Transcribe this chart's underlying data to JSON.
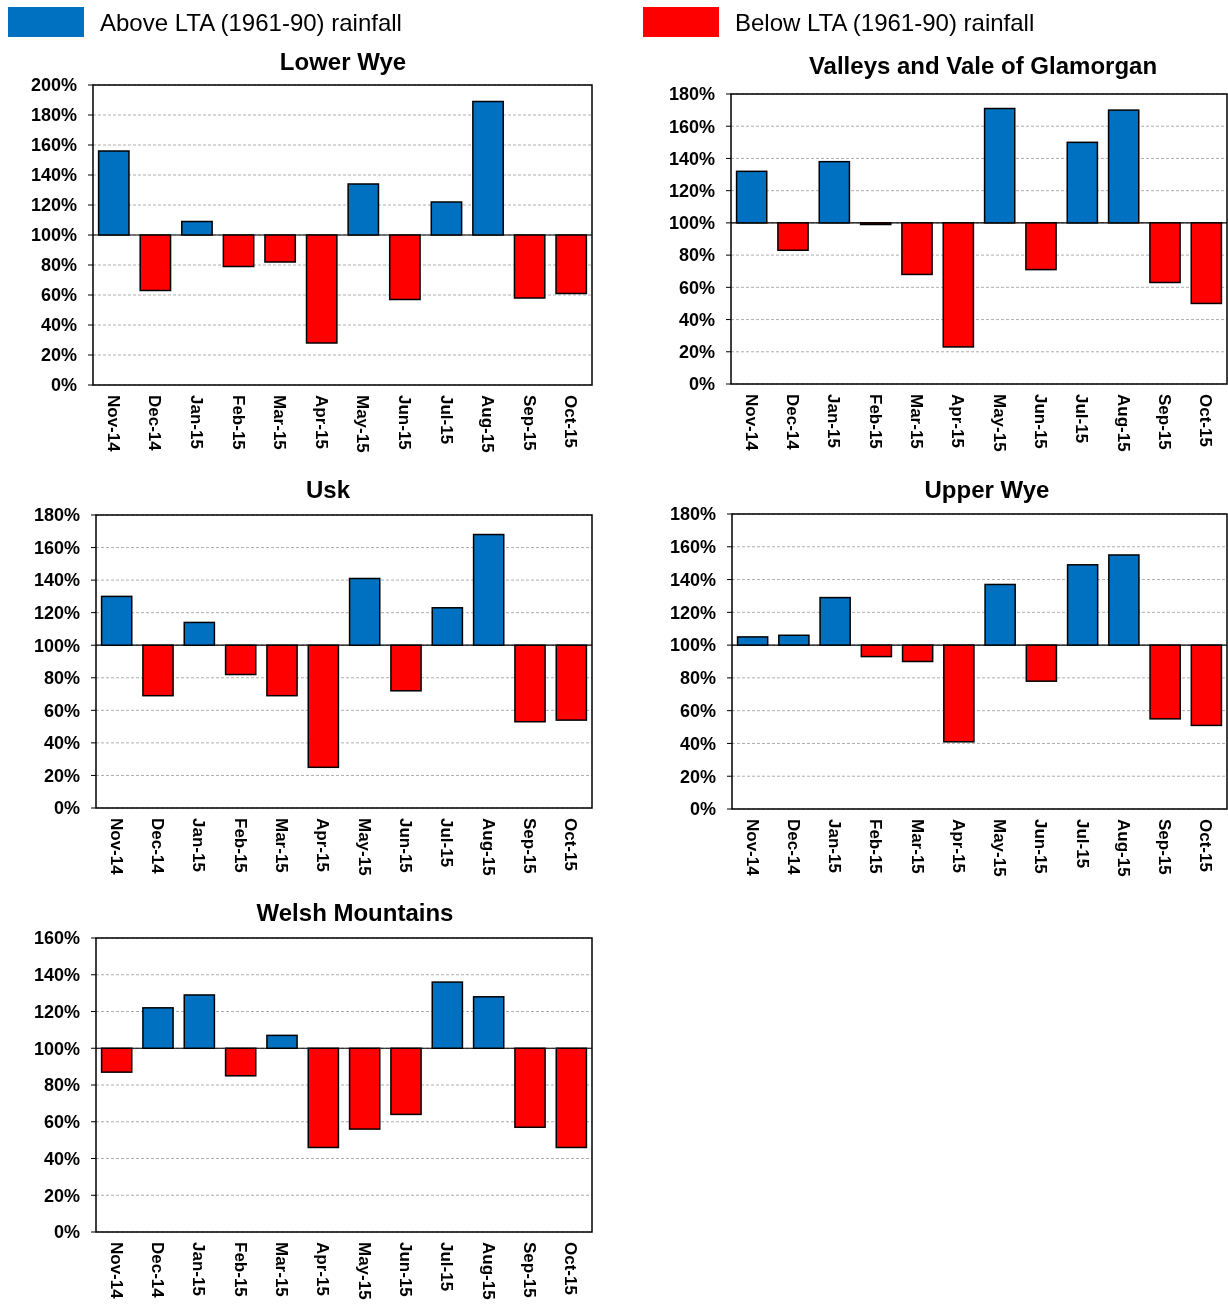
{
  "chart_data": [
    {
      "type": "bar",
      "title": "Lower Wye",
      "categories": [
        "Nov-14",
        "Dec-14",
        "Jan-15",
        "Feb-15",
        "Mar-15",
        "Apr-15",
        "May-15",
        "Jun-15",
        "Jul-15",
        "Aug-15",
        "Sep-15",
        "Oct-15"
      ],
      "ref_lines": [
        {
          "axis": "y",
          "value": 100,
          "color": "#000000"
        }
      ],
      "series": [
        {
          "name": "Above LTA (1961-90) rainfall",
          "color": "#0070c0",
          "base": [
            100,
            null,
            100,
            null,
            null,
            null,
            100,
            null,
            100,
            100,
            null,
            null
          ],
          "values": [
            56,
            null,
            9,
            null,
            null,
            null,
            34,
            null,
            22,
            89,
            null,
            null
          ]
        },
        {
          "name": "Below LTA (1961-90) rainfall",
          "color": "#ff0000",
          "base": [
            null,
            100,
            null,
            100,
            100,
            100,
            null,
            100,
            null,
            null,
            100,
            100
          ],
          "values": [
            null,
            -37,
            null,
            -21,
            -18,
            -72,
            null,
            -43,
            null,
            null,
            -42,
            -39
          ]
        }
      ],
      "ylim": [
        0,
        200
      ],
      "yticks": [
        {
          "value": 0,
          "label": "0%"
        },
        {
          "value": 20,
          "label": "20%"
        },
        {
          "value": 40,
          "label": "40%"
        },
        {
          "value": 60,
          "label": "60%"
        },
        {
          "value": 80,
          "label": "80%"
        },
        {
          "value": 100,
          "label": "100%"
        },
        {
          "value": 120,
          "label": "120%"
        },
        {
          "value": 140,
          "label": "140%"
        },
        {
          "value": 160,
          "label": "160%"
        },
        {
          "value": 180,
          "label": "180%"
        },
        {
          "value": 200,
          "label": "200%"
        }
      ],
      "grid": "y",
      "legend": "top"
    },
    {
      "type": "bar",
      "title": "Valleys and Vale of Glamorgan",
      "categories": [
        "Nov-14",
        "Dec-14",
        "Jan-15",
        "Feb-15",
        "Mar-15",
        "Apr-15",
        "May-15",
        "Jun-15",
        "Jul-15",
        "Aug-15",
        "Sep-15",
        "Oct-15"
      ],
      "ref_lines": [
        {
          "axis": "y",
          "value": 100,
          "color": "#000000"
        }
      ],
      "series": [
        {
          "color": "#0070c0",
          "base": [
            100,
            null,
            100,
            null,
            null,
            null,
            100,
            null,
            100,
            100,
            null,
            null
          ],
          "values": [
            32,
            null,
            38,
            null,
            null,
            null,
            71,
            null,
            50,
            70,
            null,
            null
          ]
        },
        {
          "color": "#ff0000",
          "base": [
            null,
            100,
            null,
            100,
            100,
            100,
            null,
            100,
            null,
            null,
            100,
            100
          ],
          "values": [
            null,
            -17,
            null,
            -1,
            -32,
            -77,
            null,
            -29,
            null,
            null,
            -37,
            -50
          ]
        }
      ],
      "ylim": [
        0,
        180
      ],
      "yticks": [
        {
          "value": 0,
          "label": "0%"
        },
        {
          "value": 20,
          "label": "20%"
        },
        {
          "value": 40,
          "label": "40%"
        },
        {
          "value": 60,
          "label": "60%"
        },
        {
          "value": 80,
          "label": "80%"
        },
        {
          "value": 100,
          "label": "100%"
        },
        {
          "value": 120,
          "label": "120%"
        },
        {
          "value": 140,
          "label": "140%"
        },
        {
          "value": 160,
          "label": "160%"
        },
        {
          "value": 180,
          "label": "180%"
        }
      ],
      "grid": "y"
    },
    {
      "type": "bar",
      "title": "Usk",
      "categories": [
        "Nov-14",
        "Dec-14",
        "Jan-15",
        "Feb-15",
        "Mar-15",
        "Apr-15",
        "May-15",
        "Jun-15",
        "Jul-15",
        "Aug-15",
        "Sep-15",
        "Oct-15"
      ],
      "ref_lines": [
        {
          "axis": "y",
          "value": 100,
          "color": "#000000"
        }
      ],
      "series": [
        {
          "color": "#0070c0",
          "base": [
            100,
            null,
            100,
            null,
            null,
            null,
            100,
            null,
            100,
            100,
            null,
            null
          ],
          "values": [
            30,
            null,
            14,
            null,
            null,
            null,
            41,
            null,
            23,
            68,
            null,
            null
          ]
        },
        {
          "color": "#ff0000",
          "base": [
            null,
            100,
            null,
            100,
            100,
            100,
            null,
            100,
            null,
            null,
            100,
            100
          ],
          "values": [
            null,
            -31,
            null,
            -18,
            -31,
            -75,
            null,
            -28,
            null,
            null,
            -47,
            -46
          ]
        }
      ],
      "ylim": [
        0,
        180
      ],
      "yticks": [
        {
          "value": 0,
          "label": "0%"
        },
        {
          "value": 20,
          "label": "20%"
        },
        {
          "value": 40,
          "label": "40%"
        },
        {
          "value": 60,
          "label": "60%"
        },
        {
          "value": 80,
          "label": "80%"
        },
        {
          "value": 100,
          "label": "100%"
        },
        {
          "value": 120,
          "label": "120%"
        },
        {
          "value": 140,
          "label": "140%"
        },
        {
          "value": 160,
          "label": "160%"
        },
        {
          "value": 180,
          "label": "180%"
        }
      ],
      "grid": "y"
    },
    {
      "type": "bar",
      "title": "Upper Wye",
      "categories": [
        "Nov-14",
        "Dec-14",
        "Jan-15",
        "Feb-15",
        "Mar-15",
        "Apr-15",
        "May-15",
        "Jun-15",
        "Jul-15",
        "Aug-15",
        "Sep-15",
        "Oct-15"
      ],
      "ref_lines": [
        {
          "axis": "y",
          "value": 100,
          "color": "#000000"
        }
      ],
      "series": [
        {
          "color": "#0070c0",
          "base": [
            100,
            100,
            100,
            null,
            null,
            null,
            100,
            null,
            100,
            100,
            null,
            null
          ],
          "values": [
            5,
            6,
            29,
            null,
            null,
            null,
            37,
            null,
            49,
            55,
            null,
            null
          ]
        },
        {
          "color": "#ff0000",
          "base": [
            null,
            null,
            null,
            100,
            100,
            100,
            null,
            100,
            null,
            null,
            100,
            100
          ],
          "values": [
            null,
            null,
            null,
            -7,
            -10,
            -59,
            null,
            -22,
            null,
            null,
            -45,
            -49
          ]
        }
      ],
      "ylim": [
        0,
        180
      ],
      "yticks": [
        {
          "value": 0,
          "label": "0%"
        },
        {
          "value": 20,
          "label": "20%"
        },
        {
          "value": 40,
          "label": "40%"
        },
        {
          "value": 60,
          "label": "60%"
        },
        {
          "value": 80,
          "label": "80%"
        },
        {
          "value": 100,
          "label": "100%"
        },
        {
          "value": 120,
          "label": "120%"
        },
        {
          "value": 140,
          "label": "140%"
        },
        {
          "value": 160,
          "label": "160%"
        },
        {
          "value": 180,
          "label": "180%"
        }
      ],
      "grid": "y"
    },
    {
      "type": "bar",
      "title": "Welsh Mountains",
      "categories": [
        "Nov-14",
        "Dec-14",
        "Jan-15",
        "Feb-15",
        "Mar-15",
        "Apr-15",
        "May-15",
        "Jun-15",
        "Jul-15",
        "Aug-15",
        "Sep-15",
        "Oct-15"
      ],
      "ref_lines": [
        {
          "axis": "y",
          "value": 100,
          "color": "#000000"
        }
      ],
      "series": [
        {
          "color": "#0070c0",
          "base": [
            null,
            100,
            100,
            null,
            100,
            null,
            null,
            null,
            100,
            100,
            null,
            null
          ],
          "values": [
            null,
            22,
            29,
            null,
            7,
            null,
            null,
            null,
            36,
            28,
            null,
            null
          ]
        },
        {
          "color": "#ff0000",
          "base": [
            100,
            null,
            null,
            100,
            null,
            100,
            100,
            100,
            null,
            null,
            100,
            100
          ],
          "values": [
            -13,
            null,
            null,
            -15,
            null,
            -54,
            -44,
            -36,
            null,
            null,
            -43,
            -54
          ]
        }
      ],
      "ylim": [
        0,
        160
      ],
      "yticks": [
        {
          "value": 0,
          "label": "0%"
        },
        {
          "value": 20,
          "label": "20%"
        },
        {
          "value": 40,
          "label": "40%"
        },
        {
          "value": 60,
          "label": "60%"
        },
        {
          "value": 80,
          "label": "80%"
        },
        {
          "value": 100,
          "label": "100%"
        },
        {
          "value": 120,
          "label": "120%"
        },
        {
          "value": 140,
          "label": "140%"
        },
        {
          "value": 160,
          "label": "160%"
        }
      ],
      "grid": "y"
    }
  ]
}
